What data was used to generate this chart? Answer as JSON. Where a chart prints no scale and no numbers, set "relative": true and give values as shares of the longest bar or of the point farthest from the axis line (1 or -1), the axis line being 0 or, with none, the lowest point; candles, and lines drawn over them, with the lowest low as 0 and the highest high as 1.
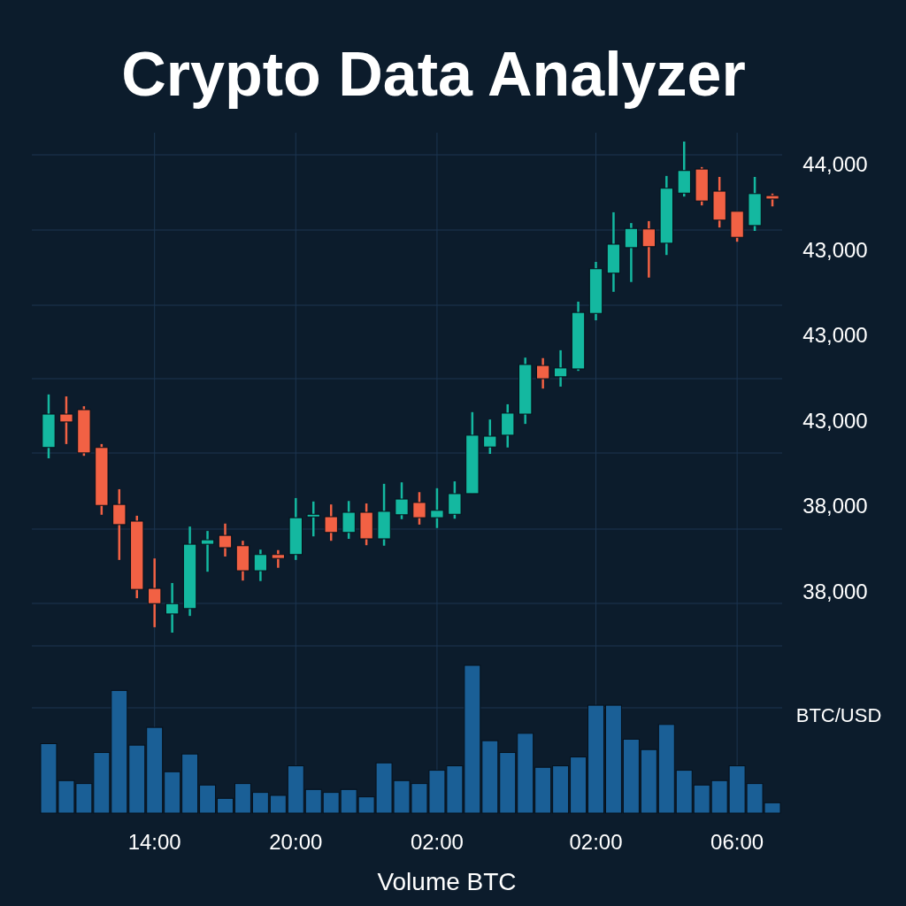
{
  "chart_data": [
    {
      "type": "candlestick",
      "title": "Crypto Data Analyzer",
      "relative": true,
      "grid": true,
      "categories": [
        null,
        null,
        null,
        null,
        null,
        null,
        null,
        null,
        null,
        null,
        null,
        null,
        null,
        null,
        null,
        null,
        null,
        null,
        null,
        null,
        null,
        null,
        null,
        null,
        null,
        null,
        null,
        null,
        null,
        null,
        null,
        null,
        null,
        null,
        null,
        null,
        null,
        null,
        null,
        null,
        null,
        null
      ],
      "ohlc": [
        [
          0.377,
          0.485,
          0.355,
          0.445
        ],
        [
          0.445,
          0.481,
          0.384,
          0.429
        ],
        [
          0.454,
          0.461,
          0.36,
          0.366
        ],
        [
          0.377,
          0.384,
          0.24,
          0.259
        ],
        [
          0.261,
          0.292,
          0.148,
          0.22
        ],
        [
          0.227,
          0.238,
          0.07,
          0.088
        ],
        [
          0.09,
          0.151,
          0.011,
          0.059
        ],
        [
          0.038,
          0.101,
          0,
          0.059
        ],
        [
          0.049,
          0.216,
          0.034,
          0.18
        ],
        [
          0.18,
          0.207,
          0.124,
          0.189
        ],
        [
          0.198,
          0.222,
          0.155,
          0.173
        ],
        [
          0.177,
          0.187,
          0.106,
          0.126
        ],
        [
          0.126,
          0.169,
          0.105,
          0.159
        ],
        [
          0.159,
          0.168,
          0.132,
          0.151
        ],
        [
          0.159,
          0.274,
          0.148,
          0.234
        ],
        [
          0.236,
          0.267,
          0.196,
          0.241
        ],
        [
          0.236,
          0.261,
          0.187,
          0.204
        ],
        [
          0.204,
          0.268,
          0.191,
          0.245
        ],
        [
          0.245,
          0.263,
          0.178,
          0.191
        ],
        [
          0.191,
          0.303,
          0.177,
          0.247
        ],
        [
          0.24,
          0.306,
          0.231,
          0.272
        ],
        [
          0.265,
          0.286,
          0.22,
          0.234
        ],
        [
          0.234,
          0.294,
          0.213,
          0.249
        ],
        [
          0.241,
          0.308,
          0.232,
          0.283
        ],
        [
          0.283,
          0.449,
          0.283,
          0.402
        ],
        [
          0.378,
          0.434,
          0.364,
          0.4
        ],
        [
          0.402,
          0.465,
          0.377,
          0.447
        ],
        [
          0.445,
          0.56,
          0.425,
          0.546
        ],
        [
          0.544,
          0.559,
          0.497,
          0.517
        ],
        [
          0.521,
          0.575,
          0.501,
          0.539
        ],
        [
          0.537,
          0.674,
          0.533,
          0.652
        ],
        [
          0.65,
          0.755,
          0.636,
          0.741
        ],
        [
          0.732,
          0.856,
          0.694,
          0.791
        ],
        [
          0.784,
          0.834,
          0.714,
          0.823
        ],
        [
          0.822,
          0.838,
          0.723,
          0.786
        ],
        [
          0.793,
          0.93,
          0.769,
          0.905
        ],
        [
          0.895,
          1,
          0.888,
          0.941
        ],
        [
          0.944,
          0.948,
          0.87,
          0.879
        ],
        [
          0.899,
          0.928,
          0.825,
          0.84
        ],
        [
          0.858,
          0.858,
          0.796,
          0.805
        ],
        [
          0.829,
          0.928,
          0.818,
          0.894
        ],
        [
          0.89,
          0.894,
          0.868,
          0.883
        ]
      ],
      "colors": [
        "#14b8a0",
        "#f26144",
        "#f26144",
        "#f26144",
        "#f26144",
        "#f26144",
        "#f26144",
        "#14b8a0",
        "#14b8a0",
        "#14b8a0",
        "#f26144",
        "#f26144",
        "#14b8a0",
        "#f26144",
        "#14b8a0",
        "#14b8a0",
        "#f26144",
        "#14b8a0",
        "#f26144",
        "#14b8a0",
        "#14b8a0",
        "#f26144",
        "#14b8a0",
        "#14b8a0",
        "#14b8a0",
        "#14b8a0",
        "#14b8a0",
        "#14b8a0",
        "#f26144",
        "#14b8a0",
        "#14b8a0",
        "#14b8a0",
        "#14b8a0",
        "#14b8a0",
        "#f26144",
        "#14b8a0",
        "#14b8a0",
        "#f26144",
        "#f26144",
        "#f26144",
        "#14b8a0",
        "#f26144"
      ],
      "annotations": [
        "44,000",
        "43,000",
        "43,000",
        "43,000",
        "38,000",
        "38,000"
      ]
    },
    {
      "type": "bar",
      "relative": true,
      "grid": true,
      "xlabel": "Volume BTC",
      "color": "#1a5f96",
      "annotations": [
        "BTC/USD"
      ],
      "categories": [
        null,
        null,
        null,
        null,
        null,
        null,
        "14:00",
        null,
        null,
        null,
        null,
        null,
        null,
        null,
        "20:00",
        null,
        null,
        null,
        null,
        null,
        null,
        null,
        "02:00",
        null,
        null,
        null,
        null,
        null,
        null,
        null,
        null,
        "02:00",
        null,
        null,
        null,
        null,
        null,
        null,
        null,
        "06:00",
        null,
        null
      ],
      "values": [
        0.47,
        0.22,
        0.2,
        0.41,
        0.83,
        0.46,
        0.58,
        0.28,
        0.4,
        0.19,
        0.1,
        0.2,
        0.14,
        0.12,
        0.32,
        0.16,
        0.14,
        0.16,
        0.11,
        0.34,
        0.22,
        0.2,
        0.29,
        0.32,
        1,
        0.49,
        0.41,
        0.54,
        0.31,
        0.32,
        0.38,
        0.73,
        0.73,
        0.5,
        0.43,
        0.6,
        0.29,
        0.19,
        0.22,
        0.32,
        0.2,
        0.07
      ]
    }
  ]
}
